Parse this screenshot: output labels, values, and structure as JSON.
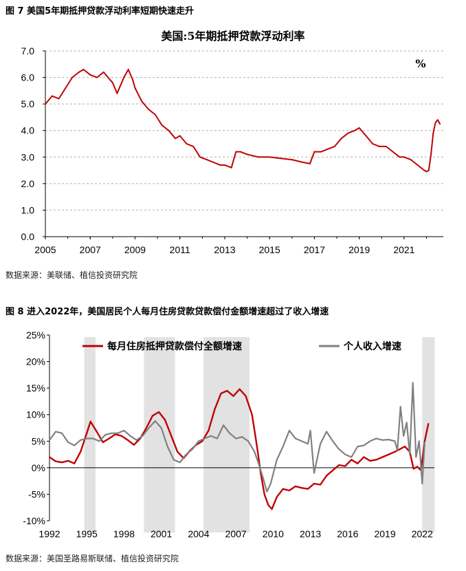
{
  "figures": {
    "fig7": {
      "title": "图 7 美国5年期抵押贷款浮动利率短期快速走升",
      "source": "数据来源：美联储、植信投资研究院"
    },
    "fig8": {
      "title": "图 8 进入2022年，美国居民个人每月住房贷款贷款偿付金额增速超过了收入增速",
      "source": "数据来源：美国圣路易斯联储、植信投资研究院"
    }
  },
  "chart_data": [
    {
      "type": "line",
      "title": "美国:5年期抵押贷款浮动利率",
      "unit": "%",
      "xlabel": "",
      "ylabel": "",
      "xlim": [
        2005,
        2022.75
      ],
      "ylim": [
        0,
        7
      ],
      "yticks": [
        "0.0",
        "1.0",
        "2.0",
        "3.0",
        "4.0",
        "5.0",
        "6.0",
        "7.0"
      ],
      "xticks": [
        2005,
        2007,
        2009,
        2011,
        2013,
        2015,
        2017,
        2019,
        2021
      ],
      "grid": "horizontal dashed",
      "series": [
        {
          "color": "#c00000",
          "x": [
            2005.0,
            2005.3,
            2005.6,
            2005.9,
            2006.2,
            2006.5,
            2006.7,
            2007.0,
            2007.3,
            2007.6,
            2007.8,
            2008.0,
            2008.2,
            2008.5,
            2008.7,
            2008.9,
            2009.0,
            2009.3,
            2009.6,
            2009.9,
            2010.2,
            2010.5,
            2010.8,
            2011.0,
            2011.3,
            2011.6,
            2011.9,
            2012.2,
            2012.5,
            2012.8,
            2013.0,
            2013.3,
            2013.5,
            2013.7,
            2014.0,
            2014.5,
            2015.0,
            2015.5,
            2016.0,
            2016.5,
            2016.8,
            2017.0,
            2017.3,
            2017.6,
            2017.9,
            2018.2,
            2018.5,
            2018.8,
            2019.0,
            2019.3,
            2019.6,
            2019.9,
            2020.2,
            2020.5,
            2020.8,
            2021.0,
            2021.3,
            2021.6,
            2021.9,
            2022.0,
            2022.1,
            2022.2,
            2022.3,
            2022.4,
            2022.5,
            2022.6
          ],
          "y": [
            5.0,
            5.3,
            5.2,
            5.6,
            6.0,
            6.2,
            6.3,
            6.1,
            6.0,
            6.2,
            6.0,
            5.8,
            5.4,
            6.0,
            6.3,
            5.9,
            5.6,
            5.1,
            4.8,
            4.6,
            4.2,
            4.0,
            3.7,
            3.8,
            3.5,
            3.4,
            3.0,
            2.9,
            2.8,
            2.7,
            2.7,
            2.6,
            3.2,
            3.2,
            3.1,
            3.0,
            3.0,
            2.95,
            2.9,
            2.8,
            2.75,
            3.2,
            3.2,
            3.3,
            3.4,
            3.7,
            3.9,
            4.0,
            4.1,
            3.8,
            3.5,
            3.4,
            3.4,
            3.2,
            3.0,
            3.0,
            2.9,
            2.7,
            2.5,
            2.45,
            2.5,
            3.1,
            3.9,
            4.3,
            4.4,
            4.25
          ]
        }
      ]
    },
    {
      "type": "line",
      "title": "",
      "xlabel": "",
      "ylabel": "",
      "xlim": [
        1992,
        2023.2
      ],
      "ylim": [
        -10,
        25
      ],
      "yticks": [
        "25%",
        "20%",
        "15%",
        "10%",
        "5%",
        "0%",
        "-5%",
        "-10%"
      ],
      "xticks": [
        1992,
        1995,
        1998,
        2001,
        2004,
        2007,
        2010,
        2013,
        2016,
        2019,
        2022
      ],
      "legend": "top",
      "shaded_periods": [
        [
          1994.8,
          1995.7
        ],
        [
          1999.6,
          2002.1
        ],
        [
          2004.4,
          2008.1
        ],
        [
          2022.0,
          2023.0
        ]
      ],
      "series": [
        {
          "name": "每月住房抵押贷款偿付全额增速",
          "color": "#c00000",
          "x": [
            1992.0,
            1992.5,
            1993.0,
            1993.5,
            1994.0,
            1994.5,
            1995.0,
            1995.3,
            1995.8,
            1996.3,
            1996.8,
            1997.3,
            1997.8,
            1998.3,
            1998.8,
            1999.3,
            1999.8,
            2000.3,
            2000.8,
            2001.3,
            2001.8,
            2002.3,
            2002.8,
            2003.3,
            2003.8,
            2004.3,
            2004.8,
            2005.3,
            2005.8,
            2006.3,
            2006.8,
            2007.3,
            2007.8,
            2008.3,
            2008.7,
            2009.0,
            2009.3,
            2009.6,
            2009.9,
            2010.3,
            2010.8,
            2011.3,
            2011.8,
            2012.3,
            2012.8,
            2013.3,
            2013.8,
            2014.3,
            2014.8,
            2015.3,
            2015.8,
            2016.3,
            2016.8,
            2017.3,
            2017.8,
            2018.3,
            2018.8,
            2019.3,
            2019.8,
            2020.2,
            2020.6,
            2021.0,
            2021.3,
            2021.6,
            2021.9,
            2022.2,
            2022.5
          ],
          "y": [
            2.0,
            1.2,
            1.0,
            1.3,
            0.8,
            3.0,
            6.5,
            8.7,
            6.8,
            4.8,
            5.5,
            6.3,
            6.0,
            5.2,
            4.3,
            5.5,
            7.5,
            9.8,
            10.5,
            9.0,
            6.0,
            3.0,
            1.8,
            3.2,
            4.3,
            5.0,
            7.0,
            11.0,
            14.0,
            14.5,
            13.5,
            14.8,
            13.5,
            10.0,
            4.0,
            -1.0,
            -5.0,
            -7.0,
            -7.8,
            -5.5,
            -4.0,
            -4.3,
            -3.5,
            -3.8,
            -4.0,
            -3.0,
            -3.2,
            -1.5,
            -0.5,
            0.5,
            0.3,
            1.5,
            0.8,
            2.0,
            1.3,
            1.5,
            2.0,
            2.5,
            3.0,
            3.5,
            4.0,
            3.0,
            -0.2,
            0.2,
            -0.5,
            5.0,
            8.3
          ]
        },
        {
          "name": "个人收入增速",
          "color": "#808080",
          "x": [
            1992.0,
            1992.5,
            1993.0,
            1993.5,
            1994.0,
            1994.5,
            1995.0,
            1995.5,
            1996.0,
            1996.5,
            1997.0,
            1997.5,
            1998.0,
            1998.5,
            1999.0,
            1999.5,
            2000.0,
            2000.5,
            2001.0,
            2001.5,
            2002.0,
            2002.5,
            2003.0,
            2003.5,
            2004.0,
            2004.5,
            2005.0,
            2005.5,
            2006.0,
            2006.5,
            2007.0,
            2007.5,
            2008.0,
            2008.5,
            2008.8,
            2009.2,
            2009.5,
            2009.8,
            2010.3,
            2010.8,
            2011.3,
            2011.8,
            2012.3,
            2012.8,
            2013.0,
            2013.3,
            2013.8,
            2014.3,
            2014.8,
            2015.3,
            2015.8,
            2016.3,
            2016.8,
            2017.3,
            2017.8,
            2018.3,
            2018.8,
            2019.3,
            2019.8,
            2020.0,
            2020.25,
            2020.5,
            2020.75,
            2021.0,
            2021.25,
            2021.5,
            2021.75,
            2022.0,
            2022.2
          ],
          "y": [
            5.2,
            6.8,
            6.5,
            4.8,
            4.2,
            5.2,
            5.5,
            5.5,
            5.0,
            6.2,
            6.5,
            6.5,
            7.0,
            6.0,
            5.2,
            6.0,
            7.5,
            8.8,
            7.5,
            4.0,
            1.5,
            1.0,
            2.5,
            3.5,
            5.0,
            5.5,
            6.0,
            5.5,
            8.0,
            6.5,
            5.5,
            5.8,
            5.0,
            3.0,
            1.0,
            -2.0,
            -4.5,
            -3.0,
            1.5,
            4.0,
            7.0,
            5.5,
            5.0,
            4.5,
            7.0,
            -1.0,
            4.5,
            6.8,
            5.0,
            3.5,
            2.5,
            2.0,
            4.0,
            4.2,
            5.0,
            5.5,
            5.2,
            5.3,
            5.0,
            3.3,
            11.5,
            6.0,
            8.5,
            2.5,
            16.0,
            2.0,
            5.0,
            -3.0,
            4.8
          ]
        }
      ]
    }
  ]
}
